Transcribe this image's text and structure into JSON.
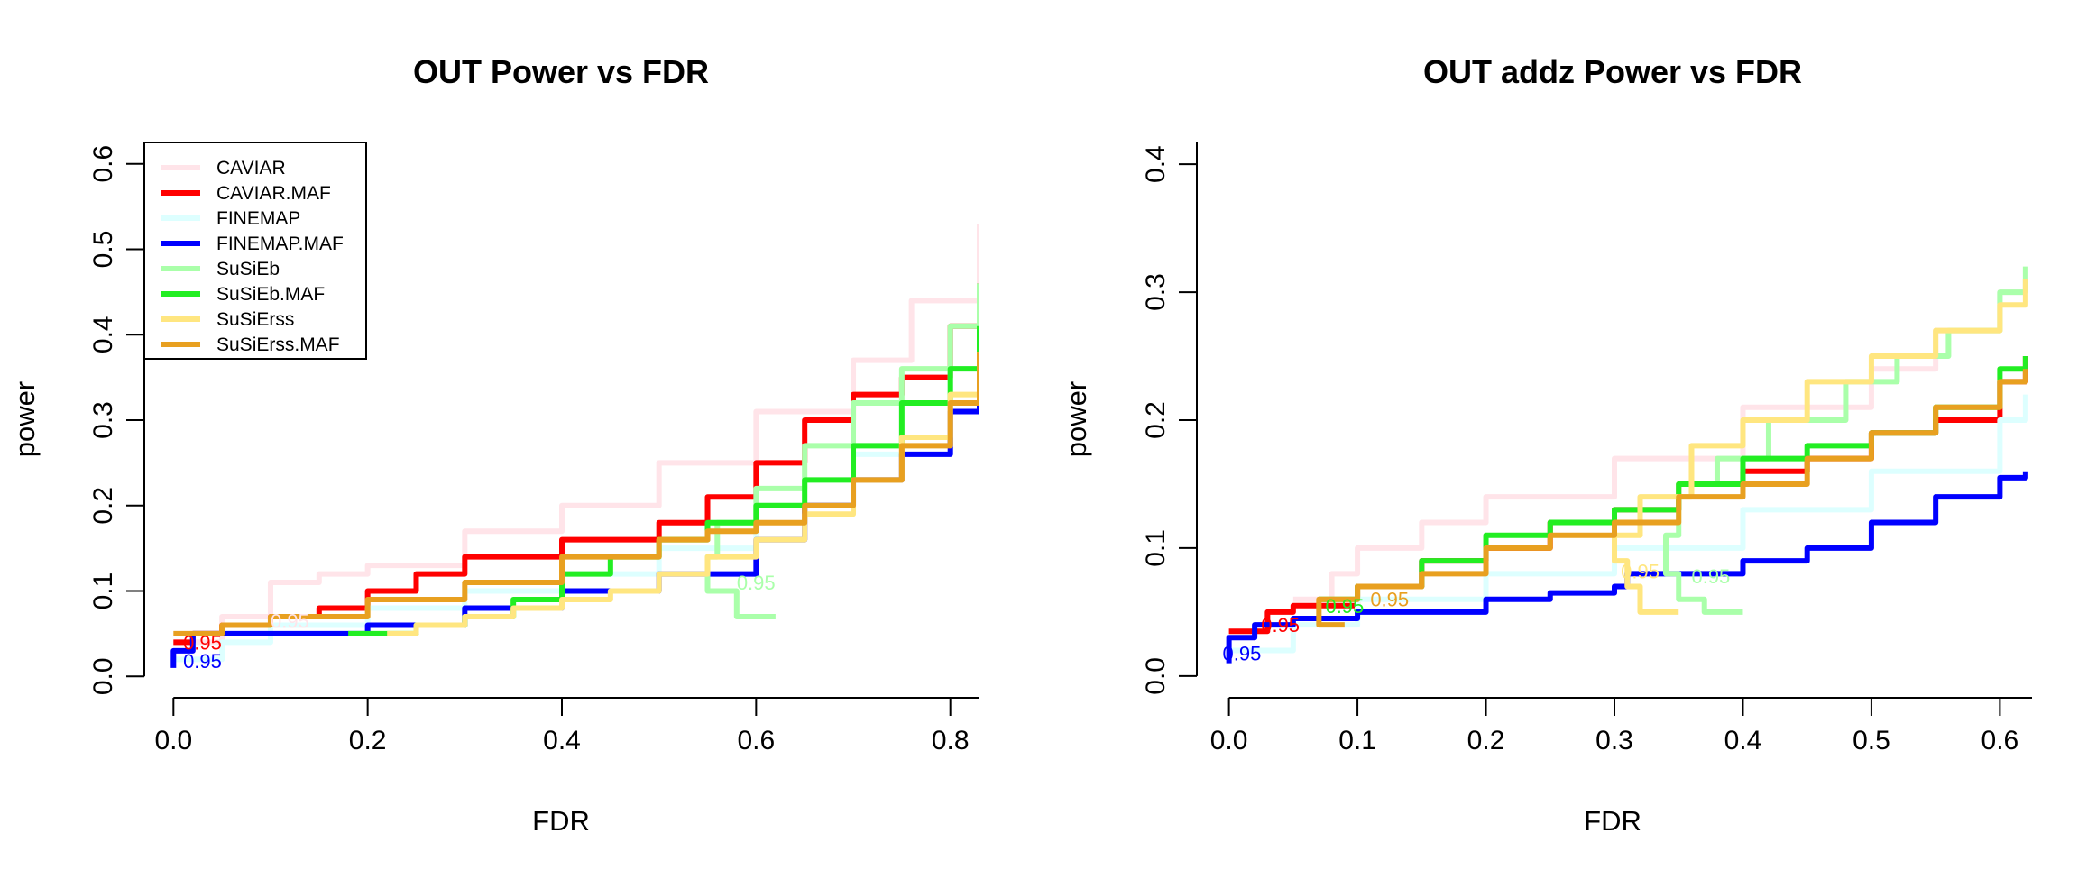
{
  "chart_data": [
    {
      "type": "line",
      "title": "OUT Power vs FDR",
      "xlabel": "FDR",
      "ylabel": "power",
      "xlim": [
        -0.03,
        0.83
      ],
      "ylim": [
        -0.025,
        0.625
      ],
      "xticks": [
        0.0,
        0.2,
        0.4,
        0.6,
        0.8
      ],
      "xtick_labels": [
        "0.0",
        "0.2",
        "0.4",
        "0.6",
        "0.8"
      ],
      "yticks": [
        0.0,
        0.1,
        0.2,
        0.3,
        0.4,
        0.5,
        0.6
      ],
      "ytick_labels": [
        "0.0",
        "0.1",
        "0.2",
        "0.3",
        "0.4",
        "0.5",
        "0.6"
      ],
      "grid": false,
      "legend": "top-left",
      "series": [
        {
          "name": "CAVIAR",
          "color": "#ffe4e9",
          "x": [
            0.0,
            0.05,
            0.1,
            0.15,
            0.2,
            0.3,
            0.4,
            0.5,
            0.6,
            0.7,
            0.76,
            0.83
          ],
          "y": [
            0.04,
            0.07,
            0.11,
            0.12,
            0.13,
            0.17,
            0.2,
            0.25,
            0.31,
            0.37,
            0.44,
            0.53
          ]
        },
        {
          "name": "CAVIAR.MAF",
          "color": "#ff0000",
          "x": [
            0.0,
            0.02,
            0.05,
            0.1,
            0.15,
            0.2,
            0.25,
            0.3,
            0.4,
            0.5,
            0.55,
            0.6,
            0.65,
            0.7,
            0.75,
            0.8,
            0.83
          ],
          "y": [
            0.04,
            0.05,
            0.06,
            0.07,
            0.08,
            0.1,
            0.12,
            0.14,
            0.16,
            0.18,
            0.21,
            0.25,
            0.3,
            0.33,
            0.35,
            0.41,
            0.46
          ]
        },
        {
          "name": "FINEMAP",
          "color": "#ddffff",
          "x": [
            0.0,
            0.05,
            0.1,
            0.2,
            0.3,
            0.4,
            0.5,
            0.6,
            0.7,
            0.8,
            0.83
          ],
          "y": [
            0.02,
            0.04,
            0.06,
            0.08,
            0.1,
            0.12,
            0.15,
            0.2,
            0.26,
            0.36,
            0.42
          ]
        },
        {
          "name": "FINEMAP.MAF",
          "color": "#0000ff",
          "x": [
            0.0,
            0.0,
            0.02,
            0.1,
            0.2,
            0.3,
            0.4,
            0.5,
            0.6,
            0.65,
            0.7,
            0.75,
            0.8,
            0.83
          ],
          "y": [
            0.01,
            0.03,
            0.05,
            0.05,
            0.06,
            0.08,
            0.1,
            0.12,
            0.16,
            0.2,
            0.23,
            0.26,
            0.31,
            0.37
          ]
        },
        {
          "name": "SuSiEb",
          "color": "#aaffaa",
          "x": [
            0.62,
            0.58,
            0.55,
            0.56,
            0.6,
            0.65,
            0.7,
            0.75,
            0.8,
            0.83
          ],
          "y": [
            0.07,
            0.1,
            0.14,
            0.18,
            0.22,
            0.27,
            0.32,
            0.36,
            0.41,
            0.46
          ]
        },
        {
          "name": "SuSiEb.MAF",
          "color": "#22ee22",
          "x": [
            0.18,
            0.25,
            0.3,
            0.35,
            0.4,
            0.45,
            0.5,
            0.55,
            0.6,
            0.65,
            0.7,
            0.75,
            0.8,
            0.83
          ],
          "y": [
            0.05,
            0.06,
            0.07,
            0.09,
            0.12,
            0.14,
            0.16,
            0.18,
            0.2,
            0.23,
            0.27,
            0.32,
            0.36,
            0.41
          ]
        },
        {
          "name": "SuSiErss",
          "color": "#ffe680",
          "x": [
            0.22,
            0.25,
            0.3,
            0.35,
            0.4,
            0.45,
            0.5,
            0.55,
            0.6,
            0.65,
            0.7,
            0.75,
            0.8,
            0.83
          ],
          "y": [
            0.05,
            0.06,
            0.07,
            0.08,
            0.09,
            0.1,
            0.12,
            0.14,
            0.16,
            0.19,
            0.23,
            0.28,
            0.33,
            0.38
          ]
        },
        {
          "name": "SuSiErss.MAF",
          "color": "#e8a020",
          "x": [
            0.0,
            0.05,
            0.1,
            0.2,
            0.3,
            0.4,
            0.5,
            0.55,
            0.6,
            0.65,
            0.7,
            0.75,
            0.8,
            0.83
          ],
          "y": [
            0.05,
            0.06,
            0.07,
            0.09,
            0.11,
            0.14,
            0.16,
            0.17,
            0.18,
            0.2,
            0.23,
            0.27,
            0.32,
            0.38
          ]
        }
      ],
      "annotations": [
        {
          "text": "0.95",
          "x": 0.01,
          "y": 0.04,
          "color": "#ff0000"
        },
        {
          "text": "0.95",
          "x": 0.01,
          "y": 0.018,
          "color": "#0000ff"
        },
        {
          "text": "0.95",
          "x": 0.1,
          "y": 0.065,
          "color": "#ffe4e9"
        },
        {
          "text": "0.95",
          "x": 0.58,
          "y": 0.11,
          "color": "#aaffaa"
        }
      ]
    },
    {
      "type": "line",
      "title": "OUT addz Power vs FDR",
      "xlabel": "FDR",
      "ylabel": "power",
      "xlim": [
        -0.025,
        0.625
      ],
      "ylim": [
        -0.017,
        0.417
      ],
      "xticks": [
        0.0,
        0.1,
        0.2,
        0.3,
        0.4,
        0.5,
        0.6
      ],
      "xtick_labels": [
        "0.0",
        "0.1",
        "0.2",
        "0.3",
        "0.4",
        "0.5",
        "0.6"
      ],
      "yticks": [
        0.0,
        0.1,
        0.2,
        0.3,
        0.4
      ],
      "ytick_labels": [
        "0.0",
        "0.1",
        "0.2",
        "0.3",
        "0.4"
      ],
      "grid": false,
      "series": [
        {
          "name": "CAVIAR",
          "color": "#ffe4e9",
          "x": [
            0.05,
            0.08,
            0.1,
            0.15,
            0.2,
            0.3,
            0.4,
            0.5,
            0.55,
            0.6,
            0.62
          ],
          "y": [
            0.06,
            0.08,
            0.1,
            0.12,
            0.14,
            0.17,
            0.21,
            0.24,
            0.27,
            0.3,
            0.31
          ]
        },
        {
          "name": "CAVIAR.MAF",
          "color": "#ff0000",
          "x": [
            0.0,
            0.03,
            0.05,
            0.1,
            0.15,
            0.2,
            0.25,
            0.3,
            0.35,
            0.4,
            0.45,
            0.5,
            0.55,
            0.6,
            0.62
          ],
          "y": [
            0.035,
            0.05,
            0.055,
            0.07,
            0.09,
            0.1,
            0.12,
            0.13,
            0.15,
            0.16,
            0.17,
            0.19,
            0.2,
            0.23,
            0.25
          ]
        },
        {
          "name": "FINEMAP",
          "color": "#ddffff",
          "x": [
            0.0,
            0.05,
            0.1,
            0.2,
            0.3,
            0.4,
            0.5,
            0.6,
            0.62
          ],
          "y": [
            0.02,
            0.04,
            0.06,
            0.08,
            0.1,
            0.13,
            0.16,
            0.2,
            0.22
          ]
        },
        {
          "name": "FINEMAP.MAF",
          "color": "#0000ff",
          "x": [
            0.0,
            0.0,
            0.02,
            0.05,
            0.1,
            0.2,
            0.25,
            0.3,
            0.31,
            0.35,
            0.4,
            0.45,
            0.5,
            0.55,
            0.6,
            0.62
          ],
          "y": [
            0.01,
            0.03,
            0.04,
            0.045,
            0.05,
            0.06,
            0.065,
            0.07,
            0.08,
            0.08,
            0.09,
            0.1,
            0.12,
            0.14,
            0.155,
            0.16
          ]
        },
        {
          "name": "SuSiEb",
          "color": "#aaffaa",
          "x": [
            0.4,
            0.37,
            0.35,
            0.34,
            0.35,
            0.38,
            0.42,
            0.48,
            0.52,
            0.56,
            0.6,
            0.62
          ],
          "y": [
            0.05,
            0.06,
            0.08,
            0.11,
            0.15,
            0.17,
            0.2,
            0.23,
            0.25,
            0.27,
            0.3,
            0.32
          ]
        },
        {
          "name": "SuSiEb.MAF",
          "color": "#22ee22",
          "x": [
            0.07,
            0.1,
            0.15,
            0.2,
            0.25,
            0.3,
            0.35,
            0.4,
            0.45,
            0.5,
            0.55,
            0.6,
            0.62
          ],
          "y": [
            0.06,
            0.07,
            0.09,
            0.11,
            0.12,
            0.13,
            0.15,
            0.17,
            0.18,
            0.19,
            0.21,
            0.24,
            0.25
          ]
        },
        {
          "name": "SuSiErss",
          "color": "#ffe680",
          "x": [
            0.35,
            0.32,
            0.31,
            0.3,
            0.32,
            0.36,
            0.4,
            0.45,
            0.5,
            0.55,
            0.6,
            0.62
          ],
          "y": [
            0.05,
            0.07,
            0.09,
            0.11,
            0.14,
            0.18,
            0.2,
            0.23,
            0.25,
            0.27,
            0.29,
            0.31
          ]
        },
        {
          "name": "SuSiErss.MAF",
          "color": "#e8a020",
          "x": [
            0.09,
            0.07,
            0.1,
            0.15,
            0.2,
            0.25,
            0.3,
            0.35,
            0.4,
            0.45,
            0.5,
            0.55,
            0.6,
            0.62
          ],
          "y": [
            0.04,
            0.06,
            0.07,
            0.08,
            0.1,
            0.11,
            0.12,
            0.14,
            0.15,
            0.17,
            0.19,
            0.21,
            0.23,
            0.24
          ]
        }
      ],
      "annotations": [
        {
          "text": "0.95",
          "x": -0.005,
          "y": 0.018,
          "color": "#0000ff"
        },
        {
          "text": "0.95",
          "x": 0.025,
          "y": 0.04,
          "color": "#ff0000"
        },
        {
          "text": "0.95",
          "x": 0.075,
          "y": 0.055,
          "color": "#22ee22"
        },
        {
          "text": "0.95",
          "x": 0.11,
          "y": 0.06,
          "color": "#e8a020"
        },
        {
          "text": "0.95",
          "x": 0.305,
          "y": 0.082,
          "color": "#ffe680"
        },
        {
          "text": "0.95",
          "x": 0.36,
          "y": 0.078,
          "color": "#aaffaa"
        }
      ]
    }
  ]
}
